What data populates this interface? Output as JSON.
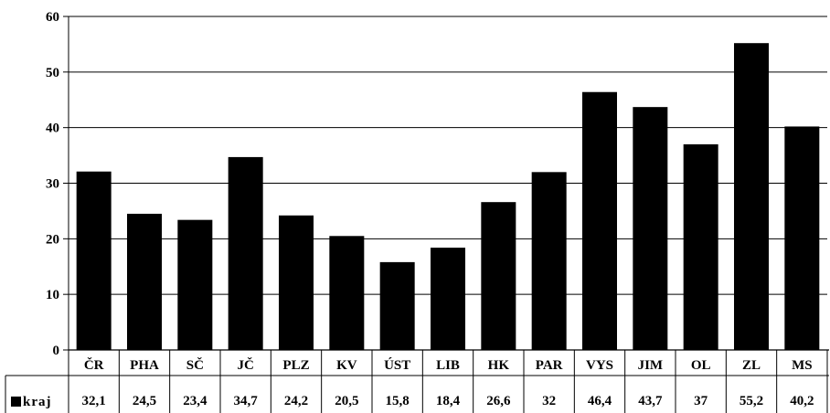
{
  "chart_data": {
    "type": "bar",
    "categories": [
      "ČR",
      "PHA",
      "SČ",
      "JČ",
      "PLZ",
      "KV",
      "ÚST",
      "LIB",
      "HK",
      "PAR",
      "VYS",
      "JIM",
      "OL",
      "ZL",
      "MS"
    ],
    "series": [
      {
        "name": "kraj",
        "values": [
          32.1,
          24.5,
          23.4,
          34.7,
          24.2,
          20.5,
          15.8,
          18.4,
          26.6,
          32,
          46.4,
          43.7,
          37,
          55.2,
          40.2
        ],
        "labels": [
          "32,1",
          "24,5",
          "23,4",
          "34,7",
          "24,2",
          "20,5",
          "15,8",
          "18,4",
          "26,6",
          "32",
          "46,4",
          "43,7",
          "37",
          "55,2",
          "40,2"
        ],
        "color": "#000000"
      }
    ],
    "yticks": [
      "0",
      "10",
      "20",
      "30",
      "40",
      "50",
      "60"
    ],
    "ylim": [
      0,
      60
    ],
    "grid": true,
    "data_table": true,
    "legend": "data-table"
  }
}
